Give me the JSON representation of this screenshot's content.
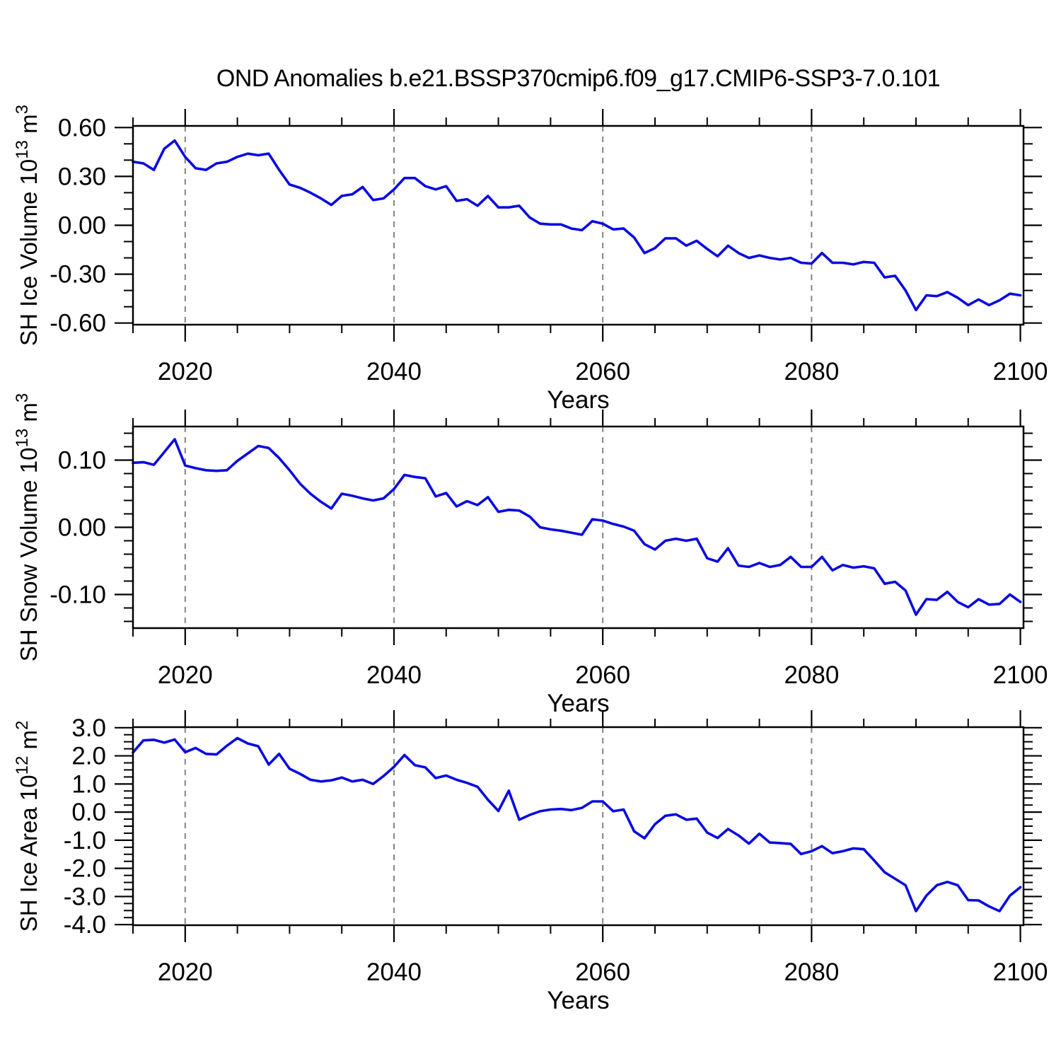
{
  "title": "OND Anomalies b.e21.BSSP370cmip6.f09_g17.CMIP6-SSP3-7.0.101",
  "line_color": "#0a0ae0",
  "grid_color": "#848484",
  "axis_color": "#000000",
  "chart_data": [
    {
      "type": "line",
      "id": "sh-ice-volume",
      "ylabel": "SH Ice Volume 10^13 m^3",
      "ylabel_parts": [
        {
          "t": "SH Ice Volume 10"
        },
        {
          "t": "13",
          "sup": true
        },
        {
          "t": " m"
        },
        {
          "t": "3",
          "sup": true
        }
      ],
      "xlabel": "Years",
      "xlim": [
        2015,
        2100.3
      ],
      "ylim": [
        -0.61,
        0.61
      ],
      "xticks": [
        {
          "v": 2020,
          "label": "2020"
        },
        {
          "v": 2040,
          "label": "2040"
        },
        {
          "v": 2060,
          "label": "2060"
        },
        {
          "v": 2080,
          "label": "2080"
        },
        {
          "v": 2100,
          "label": "2100"
        }
      ],
      "xminor_step": 5,
      "yticks": [
        {
          "v": 0.6,
          "label": "0.60"
        },
        {
          "v": 0.3,
          "label": "0.30"
        },
        {
          "v": 0.0,
          "label": "0.00"
        },
        {
          "v": -0.3,
          "label": "-0.30"
        },
        {
          "v": -0.6,
          "label": "-0.60"
        }
      ],
      "yminor_step": 0.1,
      "grid_x": [
        2020,
        2040,
        2060,
        2080
      ],
      "year_start": 2015,
      "year_end": 2100,
      "values": [
        0.39,
        0.38,
        0.34,
        0.47,
        0.52,
        0.42,
        0.35,
        0.34,
        0.38,
        0.39,
        0.42,
        0.44,
        0.43,
        0.44,
        0.34,
        0.25,
        0.23,
        0.2,
        0.165,
        0.125,
        0.18,
        0.19,
        0.235,
        0.155,
        0.165,
        0.22,
        0.29,
        0.29,
        0.24,
        0.22,
        0.24,
        0.15,
        0.16,
        0.12,
        0.18,
        0.11,
        0.11,
        0.12,
        0.048,
        0.01,
        0.005,
        0.005,
        -0.02,
        -0.03,
        0.025,
        0.01,
        -0.025,
        -0.02,
        -0.075,
        -0.17,
        -0.14,
        -0.08,
        -0.08,
        -0.125,
        -0.095,
        -0.145,
        -0.19,
        -0.125,
        -0.17,
        -0.2,
        -0.185,
        -0.2,
        -0.21,
        -0.2,
        -0.23,
        -0.235,
        -0.17,
        -0.23,
        -0.23,
        -0.24,
        -0.225,
        -0.23,
        -0.32,
        -0.31,
        -0.4,
        -0.52,
        -0.43,
        -0.435,
        -0.41,
        -0.445,
        -0.49,
        -0.455,
        -0.49,
        -0.46,
        -0.42,
        -0.43
      ]
    },
    {
      "type": "line",
      "id": "sh-snow-volume",
      "ylabel": "SH Snow Volume 10^13 m^3",
      "ylabel_parts": [
        {
          "t": "SH Snow Volume 10"
        },
        {
          "t": "13",
          "sup": true
        },
        {
          "t": " m"
        },
        {
          "t": "3",
          "sup": true
        }
      ],
      "xlabel": "Years",
      "xlim": [
        2015,
        2100.3
      ],
      "ylim": [
        -0.15,
        0.15
      ],
      "xticks": [
        {
          "v": 2020,
          "label": "2020"
        },
        {
          "v": 2040,
          "label": "2040"
        },
        {
          "v": 2060,
          "label": "2060"
        },
        {
          "v": 2080,
          "label": "2080"
        },
        {
          "v": 2100,
          "label": "2100"
        }
      ],
      "xminor_step": 5,
      "yticks": [
        {
          "v": 0.1,
          "label": "0.10"
        },
        {
          "v": 0.0,
          "label": "0.00"
        },
        {
          "v": -0.1,
          "label": "-0.10"
        }
      ],
      "yminor_step": 0.02,
      "grid_x": [
        2020,
        2040,
        2060,
        2080
      ],
      "year_start": 2015,
      "year_end": 2100,
      "values": [
        0.096,
        0.097,
        0.093,
        0.112,
        0.131,
        0.092,
        0.088,
        0.085,
        0.084,
        0.085,
        0.099,
        0.11,
        0.121,
        0.118,
        0.103,
        0.085,
        0.065,
        0.05,
        0.038,
        0.028,
        0.05,
        0.047,
        0.043,
        0.04,
        0.043,
        0.057,
        0.078,
        0.075,
        0.073,
        0.046,
        0.051,
        0.031,
        0.039,
        0.033,
        0.045,
        0.023,
        0.026,
        0.025,
        0.016,
        0.0,
        -0.003,
        -0.005,
        -0.008,
        -0.011,
        0.012,
        0.01,
        0.005,
        0.001,
        -0.005,
        -0.025,
        -0.033,
        -0.02,
        -0.017,
        -0.02,
        -0.017,
        -0.046,
        -0.051,
        -0.031,
        -0.057,
        -0.059,
        -0.053,
        -0.059,
        -0.056,
        -0.044,
        -0.059,
        -0.059,
        -0.044,
        -0.064,
        -0.056,
        -0.06,
        -0.058,
        -0.061,
        -0.084,
        -0.081,
        -0.094,
        -0.13,
        -0.107,
        -0.108,
        -0.096,
        -0.111,
        -0.119,
        -0.107,
        -0.115,
        -0.114,
        -0.1,
        -0.111
      ]
    },
    {
      "type": "line",
      "id": "sh-ice-area",
      "ylabel": "SH Ice Area 10^12 m^2",
      "ylabel_parts": [
        {
          "t": "SH Ice Area 10"
        },
        {
          "t": "12",
          "sup": true
        },
        {
          "t": " m"
        },
        {
          "t": "2",
          "sup": true
        }
      ],
      "xlabel": "Years",
      "xlim": [
        2015,
        2100.3
      ],
      "ylim": [
        -4.02,
        3.02
      ],
      "xticks": [
        {
          "v": 2020,
          "label": "2020"
        },
        {
          "v": 2040,
          "label": "2040"
        },
        {
          "v": 2060,
          "label": "2060"
        },
        {
          "v": 2080,
          "label": "2080"
        },
        {
          "v": 2100,
          "label": "2100"
        }
      ],
      "xminor_step": 5,
      "yticks": [
        {
          "v": 3.0,
          "label": "3.0"
        },
        {
          "v": 2.0,
          "label": "2.0"
        },
        {
          "v": 1.0,
          "label": "1.0"
        },
        {
          "v": 0.0,
          "label": "0.0"
        },
        {
          "v": -1.0,
          "label": "-1.0"
        },
        {
          "v": -2.0,
          "label": "-2.0"
        },
        {
          "v": -3.0,
          "label": "-3.0"
        },
        {
          "v": -4.0,
          "label": "-4.0"
        }
      ],
      "yminor_step": 0.25,
      "grid_x": [
        2020,
        2040,
        2060,
        2080
      ],
      "year_start": 2015,
      "year_end": 2100,
      "values": [
        2.12,
        2.55,
        2.57,
        2.47,
        2.58,
        2.13,
        2.28,
        2.07,
        2.05,
        2.36,
        2.63,
        2.44,
        2.34,
        1.69,
        2.07,
        1.54,
        1.36,
        1.15,
        1.09,
        1.13,
        1.23,
        1.09,
        1.15,
        1.0,
        1.28,
        1.61,
        2.03,
        1.67,
        1.59,
        1.21,
        1.3,
        1.15,
        1.04,
        0.9,
        0.44,
        0.04,
        0.76,
        -0.27,
        -0.1,
        0.03,
        0.09,
        0.11,
        0.07,
        0.15,
        0.38,
        0.38,
        0.03,
        0.09,
        -0.68,
        -0.93,
        -0.43,
        -0.13,
        -0.08,
        -0.27,
        -0.23,
        -0.73,
        -0.92,
        -0.6,
        -0.83,
        -1.12,
        -0.77,
        -1.08,
        -1.1,
        -1.13,
        -1.49,
        -1.39,
        -1.21,
        -1.46,
        -1.39,
        -1.29,
        -1.32,
        -1.72,
        -2.14,
        -2.37,
        -2.6,
        -3.52,
        -2.97,
        -2.6,
        -2.48,
        -2.6,
        -3.13,
        -3.14,
        -3.35,
        -3.52,
        -2.97,
        -2.67
      ]
    }
  ]
}
